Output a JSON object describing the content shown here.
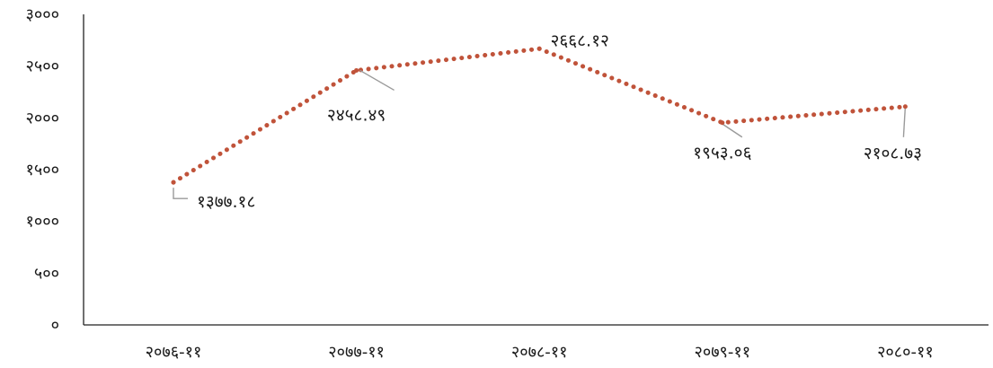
{
  "chart_data": {
    "type": "line",
    "categories": [
      "२०७६-११",
      "२०७७-११",
      "२०७८-११",
      "२०७९-११",
      "२०८०-११"
    ],
    "series": [
      {
        "values": [
          1377.18,
          2458.49,
          2668.12,
          1953.06,
          2108.73
        ],
        "data_labels": [
          "१३७७.१८",
          "२४५८.४९",
          "२६६८.१२",
          "१९५३.०६",
          "२१०८.७३"
        ],
        "color": "#c0533a",
        "line_style": "dotted"
      }
    ],
    "ylim": [
      0,
      3000
    ],
    "y_ticks": [
      0,
      500,
      1000,
      1500,
      2000,
      2500,
      3000
    ],
    "y_tick_labels": [
      "०",
      "५००",
      "१०००",
      "१५००",
      "२०००",
      "२५००",
      "३०००"
    ],
    "grid": false,
    "legend": "none"
  }
}
